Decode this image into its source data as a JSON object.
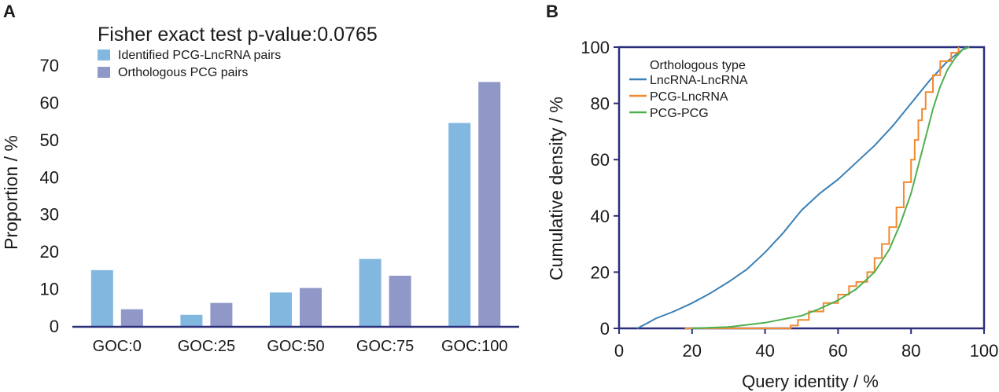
{
  "chart_data": [
    {
      "panel_label": "A",
      "type": "bar",
      "title": "Fisher exact test p-value:0.0765",
      "xlabel": "",
      "ylabel": "Proportion / %",
      "ylim": [
        0,
        70
      ],
      "yticks": [
        "0",
        "10",
        "20",
        "30",
        "40",
        "50",
        "60",
        "70"
      ],
      "categories": [
        "GOC:0",
        "GOC:25",
        "GOC:50",
        "GOC:75",
        "GOC:100"
      ],
      "series": [
        {
          "name": "Identified PCG-LncRNA pairs",
          "color": "#82b8df",
          "values": [
            15,
            3,
            9,
            18,
            54.5
          ]
        },
        {
          "name": "Orthologous PCG pairs",
          "color": "#8f98c7",
          "values": [
            4.5,
            6.2,
            10.2,
            13.5,
            65.5
          ]
        }
      ],
      "legend_position": "top-left",
      "grid": false
    },
    {
      "panel_label": "B",
      "type": "line",
      "title": "",
      "xlabel": "Query identity / %",
      "ylabel": "Cumulative density / %",
      "xlim": [
        0,
        100
      ],
      "ylim": [
        0,
        100
      ],
      "xticks": [
        "0",
        "20",
        "40",
        "60",
        "80",
        "100"
      ],
      "yticks": [
        "0",
        "20",
        "40",
        "60",
        "80",
        "100"
      ],
      "legend_title": "Orthologous type",
      "legend_position": "top-left",
      "grid": false,
      "series": [
        {
          "name": "LncRNA-LncRNA",
          "color": "#3a80b6",
          "points": [
            [
              5,
              0
            ],
            [
              8,
              2
            ],
            [
              10,
              3.5
            ],
            [
              15,
              6
            ],
            [
              20,
              9
            ],
            [
              25,
              12.5
            ],
            [
              30,
              16.5
            ],
            [
              35,
              21
            ],
            [
              40,
              27
            ],
            [
              45,
              34
            ],
            [
              50,
              42
            ],
            [
              55,
              48
            ],
            [
              60,
              53
            ],
            [
              65,
              59
            ],
            [
              70,
              65
            ],
            [
              75,
              72
            ],
            [
              80,
              80
            ],
            [
              85,
              88
            ],
            [
              90,
              95
            ],
            [
              93,
              98
            ],
            [
              95,
              100
            ]
          ]
        },
        {
          "name": "PCG-LncRNA",
          "color": "#f28a30",
          "points": [
            [
              18,
              0
            ],
            [
              47,
              1
            ],
            [
              49,
              3
            ],
            [
              52,
              6
            ],
            [
              56,
              9
            ],
            [
              60,
              12
            ],
            [
              63,
              15
            ],
            [
              65,
              16.5
            ],
            [
              68,
              20
            ],
            [
              70,
              25
            ],
            [
              72,
              30
            ],
            [
              74,
              36
            ],
            [
              76,
              43
            ],
            [
              78,
              52
            ],
            [
              80,
              60
            ],
            [
              81,
              67
            ],
            [
              82,
              74
            ],
            [
              83,
              78
            ],
            [
              84,
              84
            ],
            [
              86,
              90
            ],
            [
              88,
              95
            ],
            [
              91,
              98
            ],
            [
              93,
              100
            ]
          ]
        },
        {
          "name": "PCG-PCG",
          "color": "#4fb04f",
          "points": [
            [
              20,
              0
            ],
            [
              30,
              0.5
            ],
            [
              40,
              2
            ],
            [
              50,
              4.5
            ],
            [
              55,
              7
            ],
            [
              60,
              10
            ],
            [
              65,
              14
            ],
            [
              70,
              20
            ],
            [
              74,
              28
            ],
            [
              77,
              37
            ],
            [
              80,
              48
            ],
            [
              82,
              58
            ],
            [
              84,
              68
            ],
            [
              86,
              78
            ],
            [
              88,
              86
            ],
            [
              90,
              92
            ],
            [
              92,
              96
            ],
            [
              94,
              99
            ],
            [
              96,
              100
            ]
          ]
        }
      ]
    }
  ]
}
